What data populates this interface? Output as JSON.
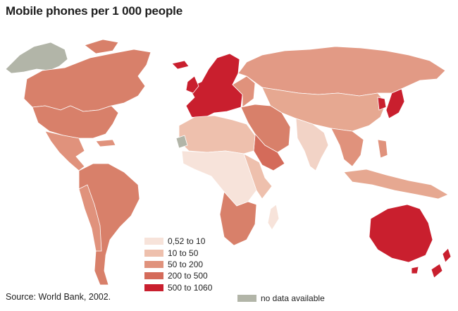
{
  "map": {
    "title": "Mobile phones per 1 000 people",
    "source": "Source: World Bank, 2002.",
    "legend": [
      {
        "label": "0,52 to 10",
        "color": "#f7e3da"
      },
      {
        "label": "10 to 50",
        "color": "#eec0ad"
      },
      {
        "label": "50 to 200",
        "color": "#e0927c"
      },
      {
        "label": "200 to 500",
        "color": "#d46b5a"
      },
      {
        "label": "500 to 1060",
        "color": "#c91f2e"
      }
    ],
    "no_data": {
      "label": "no data available",
      "color": "#b2b5a8"
    }
  }
}
